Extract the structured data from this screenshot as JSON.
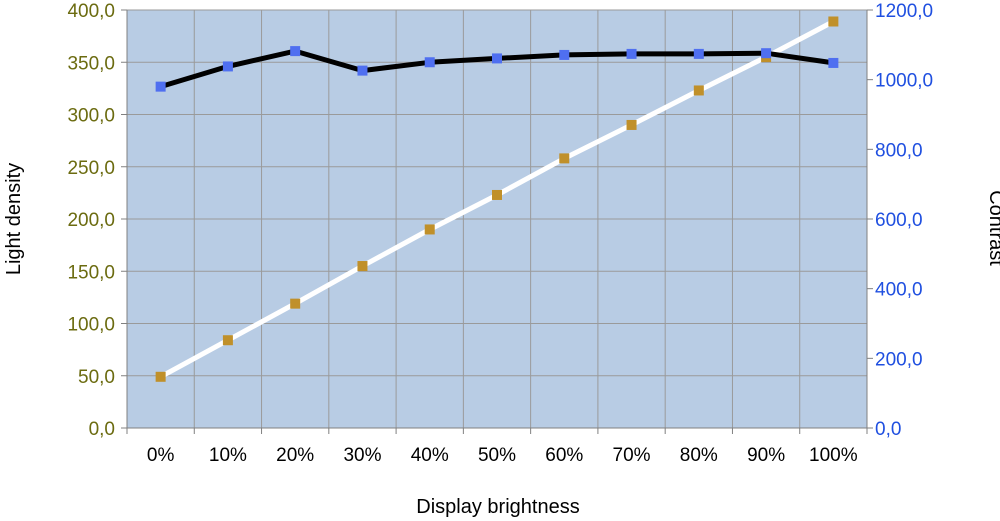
{
  "chart_data": {
    "type": "line",
    "xlabel": "Display brightness",
    "categories": [
      "0%",
      "10%",
      "20%",
      "30%",
      "40%",
      "50%",
      "60%",
      "70%",
      "80%",
      "90%",
      "100%"
    ],
    "y_left": {
      "label": "Light density",
      "range": [
        0,
        400
      ],
      "ticks": [
        "0,0",
        "50,0",
        "100,0",
        "150,0",
        "200,0",
        "250,0",
        "300,0",
        "350,0",
        "400,0"
      ],
      "tick_color": "#6b6b10"
    },
    "y_right": {
      "label": "Contrast",
      "range": [
        0,
        1200
      ],
      "ticks": [
        "0,0",
        "200,0",
        "400,0",
        "600,0",
        "800,0",
        "1000,0",
        "1200,0"
      ],
      "tick_color": "#1f4fe0"
    },
    "series": [
      {
        "axis": "left",
        "line_color": "#ffffff",
        "marker_color": "#c0902a",
        "values": [
          49,
          84,
          119,
          155,
          190,
          223,
          258,
          290,
          323,
          355,
          389
        ]
      },
      {
        "axis": "right",
        "line_color": "#000000",
        "marker_color": "#4f6ff0",
        "values": [
          980,
          1038,
          1082,
          1026,
          1050,
          1061,
          1071,
          1074,
          1074,
          1076,
          1048
        ]
      }
    ],
    "plot_background": "#b8cce4",
    "gridlines": true
  }
}
